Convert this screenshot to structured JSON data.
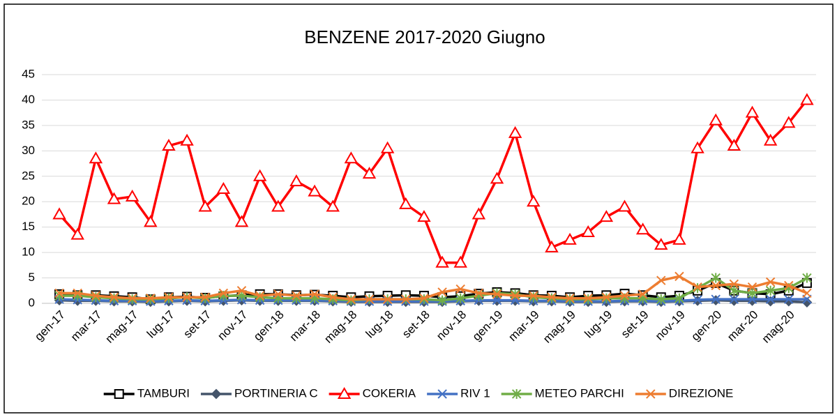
{
  "chart_data": {
    "type": "line",
    "title": "BENZENE 2017-2020 Giugno",
    "categories": [
      "gen-17",
      null,
      "mar-17",
      null,
      "mag-17",
      null,
      "lug-17",
      null,
      "set-17",
      null,
      "nov-17",
      null,
      "gen-18",
      null,
      "mar-18",
      null,
      "mag-18",
      null,
      "lug-18",
      null,
      "set-18",
      null,
      "nov-18",
      null,
      "gen-19",
      null,
      "mar-19",
      null,
      "mag-19",
      null,
      "lug-19",
      null,
      "set-19",
      null,
      "nov-19",
      null,
      "gen-20",
      null,
      "mar-20",
      null,
      "mag-20",
      null
    ],
    "ylim": [
      0,
      45
    ],
    "yticks": [
      0,
      5,
      10,
      15,
      20,
      25,
      30,
      35,
      40,
      45
    ],
    "grid": true,
    "legend": "bottom",
    "series": [
      {
        "name": "TAMBURI",
        "color": "#000000",
        "marker": "square",
        "values": [
          1.8,
          1.6,
          1.6,
          1.4,
          1.2,
          0.8,
          1.2,
          1.3,
          1.1,
          1.4,
          1.6,
          1.8,
          1.8,
          1.6,
          1.7,
          1.5,
          1.2,
          1.4,
          1.5,
          1.6,
          1.5,
          1.2,
          1.4,
          1.9,
          2.2,
          2.0,
          1.6,
          1.5,
          1.2,
          1.5,
          1.6,
          1.9,
          1.6,
          1.2,
          1.5,
          2.5,
          4,
          2.5,
          2,
          1.8,
          2.5,
          4
        ]
      },
      {
        "name": "PORTINERIA C",
        "color": "#44546a",
        "marker": "diamond",
        "values": [
          0.6,
          0.5,
          0.5,
          0.4,
          0.4,
          0.3,
          0.4,
          0.5,
          0.4,
          0.5,
          0.6,
          0.5,
          0.5,
          0.5,
          0.5,
          0.4,
          0.3,
          0.3,
          0.3,
          0.3,
          0.3,
          0.3,
          0.4,
          0.5,
          0.5,
          0.5,
          0.4,
          0.4,
          0.3,
          0.3,
          0.3,
          0.4,
          0.4,
          0.3,
          0.4,
          0.5,
          0.6,
          0.5,
          0.5,
          0.4,
          0.4,
          0.2
        ]
      },
      {
        "name": "COKERIA",
        "color": "#ff0000",
        "marker": "triangle",
        "values": [
          17.5,
          13.5,
          28.5,
          20.5,
          21,
          16,
          31,
          32,
          19,
          22.5,
          16,
          25,
          19,
          24,
          22,
          19,
          28.5,
          25.5,
          30.5,
          19.5,
          17,
          8,
          8,
          17.5,
          24.5,
          33.5,
          20,
          11,
          12.5,
          14,
          17,
          19,
          14.5,
          11.5,
          12.5,
          30.5,
          36,
          31,
          37.5,
          32,
          35.5,
          40
        ]
      },
      {
        "name": "RIV 1",
        "color": "#4472c4",
        "marker": "x",
        "values": [
          0.8,
          0.7,
          0.6,
          0.5,
          0.5,
          0.4,
          0.5,
          0.6,
          0.5,
          0.6,
          0.7,
          0.6,
          0.6,
          0.6,
          0.6,
          0.5,
          0.4,
          0.4,
          0.4,
          0.4,
          0.4,
          0.4,
          0.5,
          0.6,
          0.6,
          0.6,
          0.5,
          0.5,
          0.4,
          0.4,
          0.4,
          0.5,
          0.5,
          0.4,
          0.5,
          0.7,
          0.8,
          0.8,
          0.8,
          0.8,
          0.8,
          0.8
        ]
      },
      {
        "name": "METEO PARCHI",
        "color": "#70ad47",
        "marker": "star",
        "values": [
          1.5,
          1.5,
          1.2,
          1,
          0.8,
          0.8,
          1,
          1.2,
          1,
          1.5,
          1.5,
          1.2,
          1,
          1,
          1,
          0.8,
          0.6,
          0.8,
          0.8,
          0.8,
          0.8,
          0.6,
          1,
          1.5,
          2,
          1.8,
          1.2,
          1,
          0.8,
          0.8,
          1,
          1,
          1,
          0.8,
          1,
          3,
          5,
          2.5,
          2,
          2.5,
          3,
          5
        ]
      },
      {
        "name": "DIREZIONE",
        "color": "#ed7d31",
        "marker": "x",
        "values": [
          2,
          2,
          1.5,
          1.2,
          1,
          1,
          1.2,
          1.2,
          1.2,
          2,
          2.5,
          1.5,
          1.8,
          1.5,
          1.8,
          1.2,
          0.8,
          0.8,
          0.8,
          0.8,
          1,
          2.2,
          2.8,
          2,
          1.8,
          1.5,
          1.5,
          1.2,
          1,
          1,
          1.2,
          1.5,
          1.8,
          4.5,
          5.3,
          3.2,
          3.5,
          3.8,
          3.2,
          4.2,
          3.5,
          2
        ]
      }
    ]
  }
}
